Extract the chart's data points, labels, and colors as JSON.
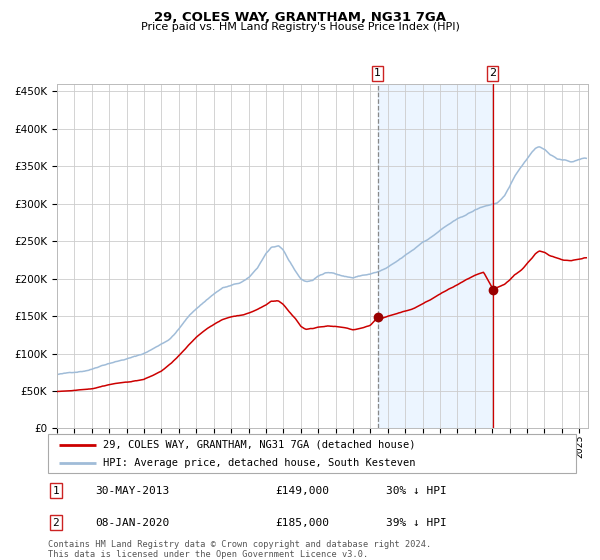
{
  "title": "29, COLES WAY, GRANTHAM, NG31 7GA",
  "subtitle": "Price paid vs. HM Land Registry's House Price Index (HPI)",
  "title_fontsize": 10,
  "subtitle_fontsize": 8.5,
  "background_color": "#ffffff",
  "plot_bg_color": "#ffffff",
  "grid_color": "#cccccc",
  "hpi_line_color": "#a0bcd8",
  "price_line_color": "#cc0000",
  "shade_color": "#ddeeff",
  "vline1_color": "#888888",
  "vline2_color": "#cc0000",
  "marker_color": "#990000",
  "ylim": [
    0,
    460000
  ],
  "yticks": [
    0,
    50000,
    100000,
    150000,
    200000,
    250000,
    300000,
    350000,
    400000,
    450000
  ],
  "event1_year": 2013.41,
  "event2_year": 2020.02,
  "event1_price": 149000,
  "event2_price": 185000,
  "legend_line1": "29, COLES WAY, GRANTHAM, NG31 7GA (detached house)",
  "legend_line2": "HPI: Average price, detached house, South Kesteven",
  "table_row1": [
    "1",
    "30-MAY-2013",
    "£149,000",
    "30% ↓ HPI"
  ],
  "table_row2": [
    "2",
    "08-JAN-2020",
    "£185,000",
    "39% ↓ HPI"
  ],
  "footnote": "Contains HM Land Registry data © Crown copyright and database right 2024.\nThis data is licensed under the Open Government Licence v3.0.",
  "xmin": 1995.0,
  "xmax": 2025.5,
  "hpi_anchors": [
    [
      1995.0,
      72000
    ],
    [
      1995.5,
      73000
    ],
    [
      1996.0,
      75000
    ],
    [
      1996.5,
      77000
    ],
    [
      1997.0,
      80000
    ],
    [
      1997.5,
      85000
    ],
    [
      1998.0,
      89000
    ],
    [
      1998.5,
      92000
    ],
    [
      1999.0,
      95000
    ],
    [
      1999.5,
      98000
    ],
    [
      2000.0,
      102000
    ],
    [
      2000.5,
      108000
    ],
    [
      2001.0,
      115000
    ],
    [
      2001.5,
      122000
    ],
    [
      2002.0,
      135000
    ],
    [
      2002.5,
      150000
    ],
    [
      2003.0,
      162000
    ],
    [
      2003.5,
      172000
    ],
    [
      2004.0,
      182000
    ],
    [
      2004.5,
      190000
    ],
    [
      2005.0,
      193000
    ],
    [
      2005.5,
      196000
    ],
    [
      2006.0,
      202000
    ],
    [
      2006.5,
      215000
    ],
    [
      2007.0,
      235000
    ],
    [
      2007.3,
      243000
    ],
    [
      2007.7,
      245000
    ],
    [
      2008.0,
      238000
    ],
    [
      2008.3,
      225000
    ],
    [
      2008.7,
      210000
    ],
    [
      2009.0,
      200000
    ],
    [
      2009.3,
      196000
    ],
    [
      2009.7,
      198000
    ],
    [
      2010.0,
      204000
    ],
    [
      2010.5,
      208000
    ],
    [
      2011.0,
      207000
    ],
    [
      2011.5,
      204000
    ],
    [
      2012.0,
      202000
    ],
    [
      2012.5,
      205000
    ],
    [
      2013.0,
      207000
    ],
    [
      2013.5,
      210000
    ],
    [
      2014.0,
      215000
    ],
    [
      2014.5,
      222000
    ],
    [
      2015.0,
      230000
    ],
    [
      2015.5,
      238000
    ],
    [
      2016.0,
      248000
    ],
    [
      2016.5,
      255000
    ],
    [
      2017.0,
      264000
    ],
    [
      2017.5,
      272000
    ],
    [
      2018.0,
      278000
    ],
    [
      2018.5,
      284000
    ],
    [
      2019.0,
      290000
    ],
    [
      2019.5,
      295000
    ],
    [
      2020.0,
      298000
    ],
    [
      2020.3,
      300000
    ],
    [
      2020.7,
      308000
    ],
    [
      2021.0,
      320000
    ],
    [
      2021.3,
      335000
    ],
    [
      2021.7,
      348000
    ],
    [
      2022.0,
      358000
    ],
    [
      2022.3,
      368000
    ],
    [
      2022.5,
      373000
    ],
    [
      2022.7,
      375000
    ],
    [
      2023.0,
      372000
    ],
    [
      2023.3,
      365000
    ],
    [
      2023.7,
      360000
    ],
    [
      2024.0,
      358000
    ],
    [
      2024.5,
      355000
    ],
    [
      2025.0,
      358000
    ],
    [
      2025.3,
      360000
    ]
  ],
  "price_anchors": [
    [
      1995.0,
      49000
    ],
    [
      1995.5,
      50000
    ],
    [
      1996.0,
      51000
    ],
    [
      1996.5,
      52500
    ],
    [
      1997.0,
      54000
    ],
    [
      1997.5,
      57000
    ],
    [
      1998.0,
      60000
    ],
    [
      1998.5,
      62000
    ],
    [
      1999.0,
      63000
    ],
    [
      1999.5,
      65000
    ],
    [
      2000.0,
      67000
    ],
    [
      2000.5,
      72000
    ],
    [
      2001.0,
      78000
    ],
    [
      2001.5,
      87000
    ],
    [
      2002.0,
      98000
    ],
    [
      2002.5,
      110000
    ],
    [
      2003.0,
      122000
    ],
    [
      2003.5,
      132000
    ],
    [
      2004.0,
      140000
    ],
    [
      2004.5,
      146000
    ],
    [
      2005.0,
      150000
    ],
    [
      2005.5,
      152000
    ],
    [
      2006.0,
      155000
    ],
    [
      2006.5,
      160000
    ],
    [
      2007.0,
      166000
    ],
    [
      2007.3,
      171000
    ],
    [
      2007.7,
      172000
    ],
    [
      2008.0,
      167000
    ],
    [
      2008.3,
      158000
    ],
    [
      2008.7,
      148000
    ],
    [
      2009.0,
      138000
    ],
    [
      2009.3,
      134000
    ],
    [
      2009.7,
      135000
    ],
    [
      2010.0,
      137000
    ],
    [
      2010.5,
      139000
    ],
    [
      2011.0,
      138000
    ],
    [
      2011.5,
      136000
    ],
    [
      2012.0,
      133000
    ],
    [
      2012.5,
      135000
    ],
    [
      2013.0,
      139000
    ],
    [
      2013.41,
      149000
    ],
    [
      2013.7,
      148500
    ],
    [
      2014.0,
      151000
    ],
    [
      2014.5,
      154000
    ],
    [
      2015.0,
      157000
    ],
    [
      2015.5,
      161000
    ],
    [
      2016.0,
      167000
    ],
    [
      2016.5,
      173000
    ],
    [
      2017.0,
      180000
    ],
    [
      2017.5,
      186000
    ],
    [
      2018.0,
      192000
    ],
    [
      2018.5,
      198000
    ],
    [
      2019.0,
      203000
    ],
    [
      2019.5,
      207000
    ],
    [
      2020.02,
      185000
    ],
    [
      2020.3,
      186000
    ],
    [
      2020.7,
      190000
    ],
    [
      2021.0,
      196000
    ],
    [
      2021.3,
      203000
    ],
    [
      2021.7,
      210000
    ],
    [
      2022.0,
      218000
    ],
    [
      2022.3,
      226000
    ],
    [
      2022.5,
      232000
    ],
    [
      2022.7,
      235000
    ],
    [
      2023.0,
      233000
    ],
    [
      2023.3,
      228000
    ],
    [
      2023.7,
      225000
    ],
    [
      2024.0,
      223000
    ],
    [
      2024.5,
      222000
    ],
    [
      2025.0,
      224000
    ],
    [
      2025.3,
      226000
    ]
  ]
}
